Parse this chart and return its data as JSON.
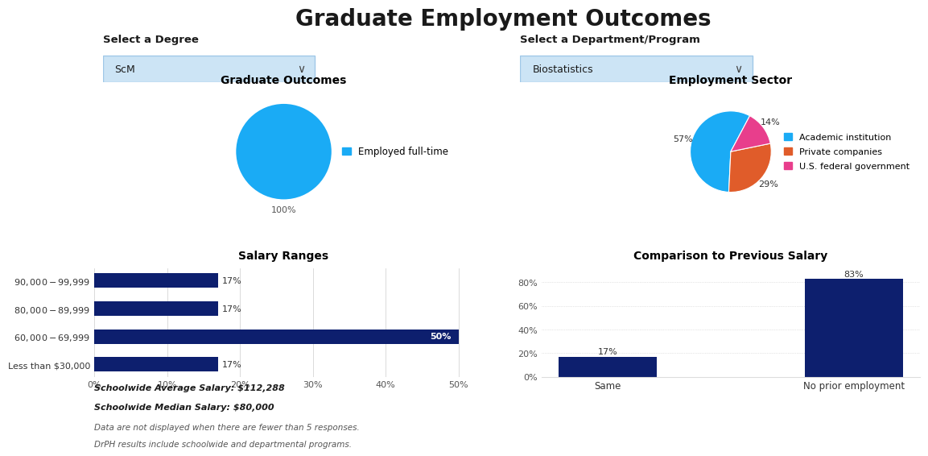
{
  "title": "Graduate Employment Outcomes",
  "title_fontsize": 20,
  "background_color": "#ffffff",
  "degree_label": "Select a Degree",
  "degree_value": "ScM",
  "dept_label": "Select a Department/Program",
  "dept_value": "Biostatistics",
  "dropdown_bg": "#cce4f5",
  "dropdown_border": "#a0c8e8",
  "grad_outcomes_title": "Graduate Outcomes",
  "grad_outcomes_data": [
    100
  ],
  "grad_outcomes_colors": [
    "#1aabf5"
  ],
  "grad_outcomes_legend_label": "Employed full-time",
  "emp_sector_title": "Employment Sector",
  "emp_sector_data": [
    57,
    29,
    14
  ],
  "emp_sector_legend": [
    "Academic institution",
    "Private companies",
    "U.S. federal government"
  ],
  "emp_sector_colors": [
    "#1aabf5",
    "#e05c2a",
    "#e83e8c"
  ],
  "emp_sector_startangle": 62,
  "salary_title": "Salary Ranges",
  "salary_categories": [
    "$90,000 - $99,999",
    "$80,000 - $89,999",
    "$60,000 - $69,999",
    "Less than $30,000"
  ],
  "salary_values": [
    17,
    17,
    50,
    17
  ],
  "salary_color": "#0d1f6e",
  "salary_xlim": [
    0,
    52
  ],
  "salary_xticks": [
    0,
    10,
    20,
    30,
    40,
    50
  ],
  "salary_xtick_labels": [
    "0%",
    "10%",
    "20%",
    "30%",
    "40%",
    "50%"
  ],
  "salary_note1": "Schoolwide Average Salary: $112,288",
  "salary_note2": "Schoolwide Median Salary: $80,000",
  "salary_note3": "Data are not displayed when there are fewer than 5 responses.",
  "salary_note4": "DrPH results include schoolwide and departmental programs.",
  "comp_title": "Comparison to Previous Salary",
  "comp_categories": [
    "Same",
    "No prior employment"
  ],
  "comp_values": [
    17,
    83
  ],
  "comp_color": "#0d1f6e",
  "comp_ylim": [
    0,
    92
  ],
  "comp_yticks": [
    0,
    20,
    40,
    60,
    80
  ],
  "comp_ytick_labels": [
    "0%",
    "20%",
    "40%",
    "60%",
    "80%"
  ]
}
